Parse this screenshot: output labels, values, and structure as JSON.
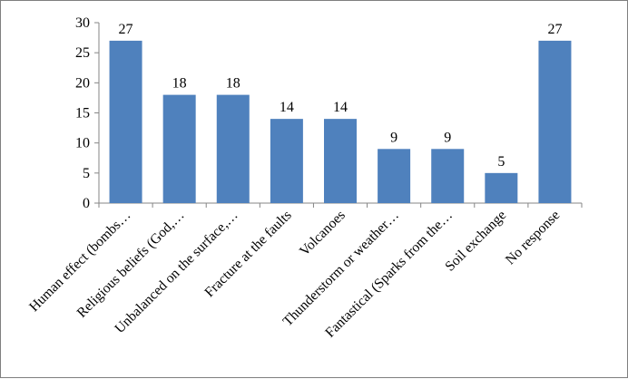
{
  "chart_data": {
    "type": "bar",
    "categories": [
      "Human effect (bombs…",
      "Religious beliefs (God,…",
      "Unbalanced on the surface,…",
      "Fracture at the faults",
      "Volcanoes",
      "Thunderstorm or weather…",
      "Fantastical (Sparks from the…",
      "Soil exchange",
      "No response"
    ],
    "values": [
      27,
      18,
      18,
      14,
      14,
      9,
      9,
      5,
      27
    ],
    "data_labels": [
      "27",
      "18",
      "18",
      "14",
      "14",
      "9",
      "9",
      "5",
      "27"
    ],
    "yticks": [
      "0",
      "5",
      "10",
      "15",
      "20",
      "25",
      "30"
    ],
    "ylim": [
      0,
      30
    ],
    "title": "",
    "xlabel": "",
    "ylabel": "",
    "grid": false,
    "legend": "none",
    "bar_color": "#4f81bd"
  }
}
